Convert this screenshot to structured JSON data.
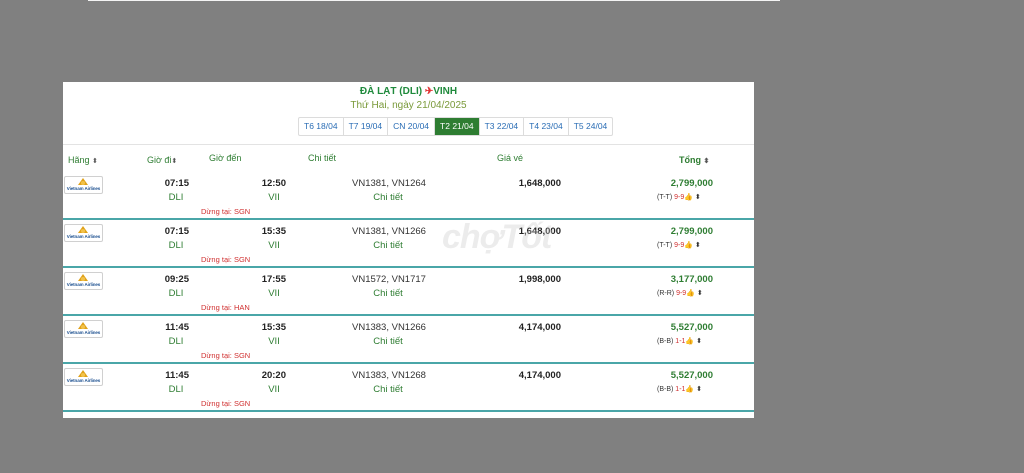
{
  "route": {
    "origin": "ĐÀ LẠT (DLI)",
    "plane_icon": "✈",
    "destination": "VINH",
    "date_line": "Thứ Hai, ngày 21/04/2025"
  },
  "date_tabs": [
    {
      "label": "T6 18/04",
      "active": false
    },
    {
      "label": "T7 19/04",
      "active": false
    },
    {
      "label": "CN 20/04",
      "active": false
    },
    {
      "label": "T2 21/04",
      "active": true
    },
    {
      "label": "T3 22/04",
      "active": false
    },
    {
      "label": "T4 23/04",
      "active": false
    },
    {
      "label": "T5 24/04",
      "active": false
    }
  ],
  "headers": {
    "airline": "Hãng",
    "depart": "Giờ đi",
    "arrive": "Giờ đến",
    "detail": "Chi tiết",
    "price": "Giá vé",
    "total": "Tổng",
    "sort_icon": "⬍"
  },
  "airline_logo": "Vietnam Airlines",
  "flights": [
    {
      "dep_time": "07:15",
      "dep_airport": "DLI",
      "arr_time": "12:50",
      "arr_airport": "VII",
      "flight_nos": "VN1381, VN1264",
      "detail_link": "Chi tiết",
      "stop": "Dừng tại: SGN",
      "price": "1,648,000",
      "total": "2,799,000",
      "fare_class": "(T-T)",
      "count": "9-9",
      "thumb_icon": "👍",
      "caret_icon": "⬍"
    },
    {
      "dep_time": "07:15",
      "dep_airport": "DLI",
      "arr_time": "15:35",
      "arr_airport": "VII",
      "flight_nos": "VN1381, VN1266",
      "detail_link": "Chi tiết",
      "stop": "Dừng tại: SGN",
      "price": "1,648,000",
      "total": "2,799,000",
      "fare_class": "(T-T)",
      "count": "9-9",
      "thumb_icon": "👍",
      "caret_icon": "⬍"
    },
    {
      "dep_time": "09:25",
      "dep_airport": "DLI",
      "arr_time": "17:55",
      "arr_airport": "VII",
      "flight_nos": "VN1572, VN1717",
      "detail_link": "Chi tiết",
      "stop": "Dừng tại: HAN",
      "price": "1,998,000",
      "total": "3,177,000",
      "fare_class": "(R-R)",
      "count": "9-9",
      "thumb_icon": "👍",
      "caret_icon": "⬍"
    },
    {
      "dep_time": "11:45",
      "dep_airport": "DLI",
      "arr_time": "15:35",
      "arr_airport": "VII",
      "flight_nos": "VN1383, VN1266",
      "detail_link": "Chi tiết",
      "stop": "Dừng tại: SGN",
      "price": "4,174,000",
      "total": "5,527,000",
      "fare_class": "(B-B)",
      "count": "1-1",
      "thumb_icon": "👍",
      "caret_icon": "⬍"
    },
    {
      "dep_time": "11:45",
      "dep_airport": "DLI",
      "arr_time": "20:20",
      "arr_airport": "VII",
      "flight_nos": "VN1383, VN1268",
      "detail_link": "Chi tiết",
      "stop": "Dừng tại: SGN",
      "price": "4,174,000",
      "total": "5,527,000",
      "fare_class": "(B-B)",
      "count": "1-1",
      "thumb_icon": "👍",
      "caret_icon": "⬍"
    }
  ],
  "watermark": "chợTốt"
}
